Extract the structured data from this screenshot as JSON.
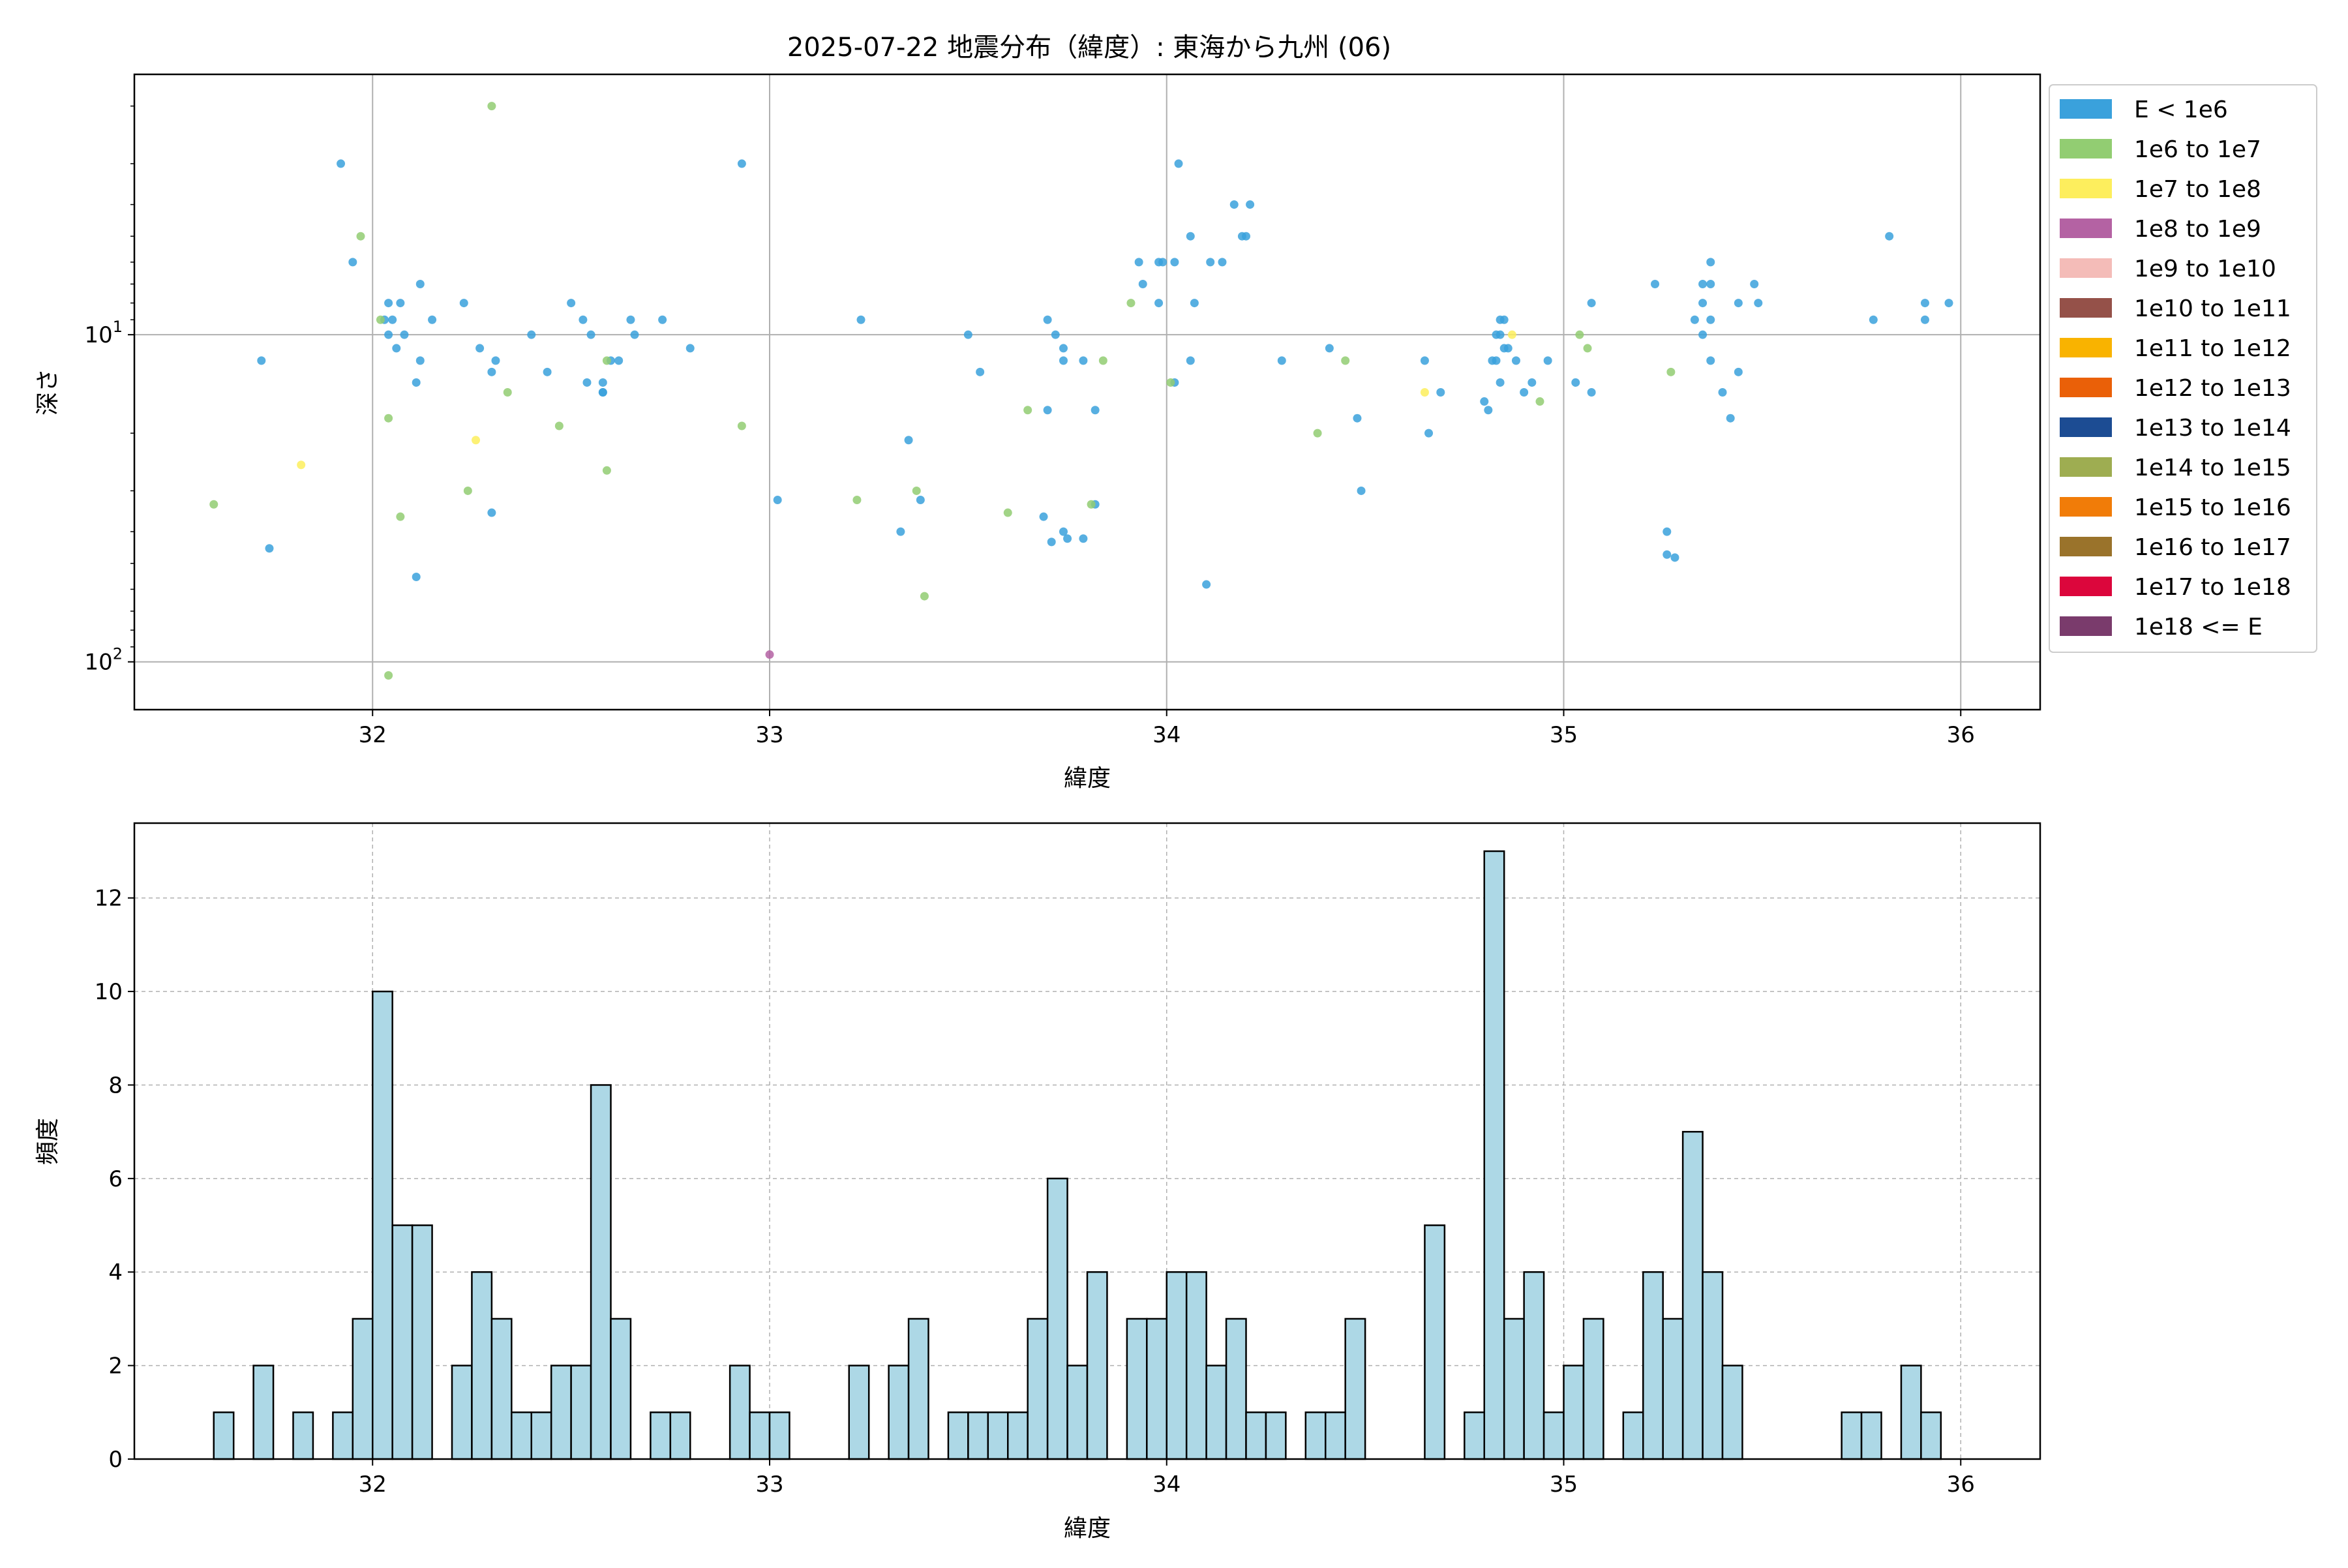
{
  "chart_data": [
    {
      "type": "scatter",
      "title": "2025-07-22 地震分布（緯度）: 東海から九州 (06)",
      "xlabel": "緯度",
      "ylabel": "深さ",
      "xlim": [
        31.4,
        36.2
      ],
      "ylim": [
        140,
        1.6
      ],
      "yscale": "log",
      "yaxis_inverted": true,
      "xticks": [
        32,
        33,
        34,
        35,
        36
      ],
      "yticks": [
        {
          "value": 10,
          "base": "10",
          "exp": "1"
        },
        {
          "value": 100,
          "base": "10",
          "exp": "2"
        }
      ],
      "grid": true,
      "legend_position": "outside-right",
      "legend": [
        {
          "label": "E < 1e6",
          "color": "#3aa1dc"
        },
        {
          "label": "1e6 to 1e7",
          "color": "#92cd72"
        },
        {
          "label": "1e7 to 1e8",
          "color": "#fdee5d"
        },
        {
          "label": "1e8 to 1e9",
          "color": "#b462a3"
        },
        {
          "label": "1e9 to 1e10",
          "color": "#f4bcb8"
        },
        {
          "label": "1e10 to 1e11",
          "color": "#955149"
        },
        {
          "label": "1e11 to 1e12",
          "color": "#f9b300"
        },
        {
          "label": "1e12 to 1e13",
          "color": "#ea6008"
        },
        {
          "label": "1e13 to 1e14",
          "color": "#1c4c93"
        },
        {
          "label": "1e14 to 1e15",
          "color": "#9ead51"
        },
        {
          "label": "1e15 to 1e16",
          "color": "#f17c08"
        },
        {
          "label": "1e16 to 1e17",
          "color": "#9a732b"
        },
        {
          "label": "1e17 to 1e18",
          "color": "#dc063c"
        },
        {
          "label": "1e18 <= E",
          "color": "#7a3b6c"
        }
      ],
      "series": [
        {
          "name": "E < 1e6",
          "color": "#3aa1dc",
          "points": [
            [
              31.92,
              3.0
            ],
            [
              31.95,
              6.0
            ],
            [
              31.72,
              12.0
            ],
            [
              31.74,
              45.0
            ],
            [
              32.04,
              8.0
            ],
            [
              32.03,
              9.0
            ],
            [
              32.05,
              9.0
            ],
            [
              32.04,
              10.0
            ],
            [
              32.07,
              8.0
            ],
            [
              32.06,
              11.0
            ],
            [
              32.08,
              10.0
            ],
            [
              32.12,
              7.0
            ],
            [
              32.15,
              9.0
            ],
            [
              32.12,
              12.0
            ],
            [
              32.11,
              14.0
            ],
            [
              32.11,
              55.0
            ],
            [
              32.23,
              8.0
            ],
            [
              32.27,
              11.0
            ],
            [
              32.3,
              13.0
            ],
            [
              32.31,
              12.0
            ],
            [
              32.3,
              35.0
            ],
            [
              32.4,
              10.0
            ],
            [
              32.44,
              13.0
            ],
            [
              32.5,
              8.0
            ],
            [
              32.53,
              9.0
            ],
            [
              32.55,
              10.0
            ],
            [
              32.54,
              14.0
            ],
            [
              32.58,
              14.0
            ],
            [
              32.58,
              15.0
            ],
            [
              32.58,
              15.0
            ],
            [
              32.6,
              12.0
            ],
            [
              32.62,
              12.0
            ],
            [
              32.65,
              9.0
            ],
            [
              32.66,
              10.0
            ],
            [
              32.73,
              9.0
            ],
            [
              32.8,
              11.0
            ],
            [
              32.93,
              3.0
            ],
            [
              33.02,
              32.0
            ],
            [
              33.23,
              9.0
            ],
            [
              33.33,
              40.0
            ],
            [
              33.35,
              21.0
            ],
            [
              33.38,
              32.0
            ],
            [
              33.5,
              10.0
            ],
            [
              33.53,
              13.0
            ],
            [
              33.7,
              9.0
            ],
            [
              33.72,
              10.0
            ],
            [
              33.74,
              11.0
            ],
            [
              33.74,
              12.0
            ],
            [
              33.79,
              12.0
            ],
            [
              33.82,
              17.0
            ],
            [
              33.7,
              17.0
            ],
            [
              33.69,
              36.0
            ],
            [
              33.71,
              43.0
            ],
            [
              33.74,
              40.0
            ],
            [
              33.75,
              42.0
            ],
            [
              33.79,
              42.0
            ],
            [
              33.82,
              33.0
            ],
            [
              33.93,
              6.0
            ],
            [
              33.94,
              7.0
            ],
            [
              33.98,
              6.0
            ],
            [
              33.99,
              6.0
            ],
            [
              33.98,
              8.0
            ],
            [
              34.03,
              3.0
            ],
            [
              34.02,
              6.0
            ],
            [
              34.06,
              5.0
            ],
            [
              34.07,
              8.0
            ],
            [
              34.11,
              6.0
            ],
            [
              34.14,
              6.0
            ],
            [
              34.17,
              4.0
            ],
            [
              34.19,
              5.0
            ],
            [
              34.21,
              4.0
            ],
            [
              34.2,
              5.0
            ],
            [
              34.06,
              12.0
            ],
            [
              34.02,
              14.0
            ],
            [
              34.1,
              58.0
            ],
            [
              34.29,
              12.0
            ],
            [
              34.41,
              11.0
            ],
            [
              34.48,
              18.0
            ],
            [
              34.49,
              30.0
            ],
            [
              34.65,
              12.0
            ],
            [
              34.66,
              20.0
            ],
            [
              34.69,
              15.0
            ],
            [
              34.81,
              17.0
            ],
            [
              34.83,
              10.0
            ],
            [
              34.83,
              12.0
            ],
            [
              34.85,
              11.0
            ],
            [
              34.86,
              11.0
            ],
            [
              34.84,
              9.0
            ],
            [
              34.85,
              9.0
            ],
            [
              34.84,
              10.0
            ],
            [
              34.82,
              12.0
            ],
            [
              34.84,
              14.0
            ],
            [
              34.8,
              16.0
            ],
            [
              34.88,
              12.0
            ],
            [
              34.9,
              15.0
            ],
            [
              34.92,
              14.0
            ],
            [
              34.96,
              12.0
            ],
            [
              35.03,
              14.0
            ],
            [
              35.07,
              15.0
            ],
            [
              35.07,
              8.0
            ],
            [
              35.23,
              7.0
            ],
            [
              35.26,
              40.0
            ],
            [
              35.26,
              47.0
            ],
            [
              35.28,
              48.0
            ],
            [
              35.33,
              9.0
            ],
            [
              35.35,
              8.0
            ],
            [
              35.35,
              7.0
            ],
            [
              35.35,
              10.0
            ],
            [
              35.37,
              6.0
            ],
            [
              35.37,
              7.0
            ],
            [
              35.37,
              9.0
            ],
            [
              35.37,
              12.0
            ],
            [
              35.4,
              15.0
            ],
            [
              35.42,
              18.0
            ],
            [
              35.44,
              8.0
            ],
            [
              35.44,
              13.0
            ],
            [
              35.48,
              7.0
            ],
            [
              35.49,
              8.0
            ],
            [
              35.78,
              9.0
            ],
            [
              35.82,
              5.0
            ],
            [
              35.91,
              9.0
            ],
            [
              35.91,
              8.0
            ],
            [
              35.97,
              8.0
            ]
          ]
        },
        {
          "name": "1e6 to 1e7",
          "color": "#92cd72",
          "points": [
            [
              31.6,
              33.0
            ],
            [
              31.97,
              5.0
            ],
            [
              32.02,
              9.0
            ],
            [
              32.04,
              18.0
            ],
            [
              32.07,
              36.0
            ],
            [
              32.04,
              110.0
            ],
            [
              32.24,
              30.0
            ],
            [
              32.3,
              2.0
            ],
            [
              32.34,
              15.0
            ],
            [
              32.47,
              19.0
            ],
            [
              32.59,
              12.0
            ],
            [
              32.59,
              26.0
            ],
            [
              32.93,
              19.0
            ],
            [
              33.22,
              32.0
            ],
            [
              33.37,
              30.0
            ],
            [
              33.39,
              63.0
            ],
            [
              33.6,
              35.0
            ],
            [
              33.65,
              17.0
            ],
            [
              33.81,
              33.0
            ],
            [
              33.84,
              12.0
            ],
            [
              33.91,
              8.0
            ],
            [
              34.01,
              14.0
            ],
            [
              34.38,
              20.0
            ],
            [
              34.45,
              12.0
            ],
            [
              34.94,
              16.0
            ],
            [
              35.04,
              10.0
            ],
            [
              35.06,
              11.0
            ],
            [
              35.27,
              13.0
            ]
          ]
        },
        {
          "name": "1e7 to 1e8",
          "color": "#fdee5d",
          "points": [
            [
              31.82,
              25.0
            ],
            [
              32.26,
              21.0
            ],
            [
              34.65,
              15.0
            ],
            [
              34.87,
              10.0
            ]
          ]
        },
        {
          "name": "1e8 to 1e9",
          "color": "#b462a3",
          "points": [
            [
              33.0,
              95.0
            ]
          ]
        }
      ]
    },
    {
      "type": "bar",
      "title": "",
      "xlabel": "緯度",
      "ylabel": "頻度",
      "xlim": [
        31.4,
        36.2
      ],
      "ylim": [
        0,
        13.6
      ],
      "xticks": [
        32,
        33,
        34,
        35,
        36
      ],
      "yticks": [
        0,
        2,
        4,
        6,
        8,
        10,
        12
      ],
      "grid": true,
      "bar_color": "#add8e6",
      "bin_edges": [
        31.6,
        36.0
      ],
      "bin_count": 88,
      "values": [
        1,
        0,
        2,
        0,
        1,
        0,
        1,
        3,
        10,
        5,
        5,
        0,
        2,
        4,
        3,
        1,
        1,
        2,
        2,
        8,
        3,
        0,
        1,
        1,
        0,
        0,
        2,
        1,
        1,
        0,
        0,
        0,
        2,
        0,
        2,
        3,
        0,
        1,
        1,
        1,
        1,
        3,
        6,
        2,
        4,
        0,
        3,
        3,
        4,
        4,
        2,
        3,
        1,
        1,
        0,
        1,
        1,
        3,
        0,
        0,
        0,
        5,
        0,
        1,
        13,
        3,
        4,
        1,
        2,
        3,
        0,
        1,
        4,
        3,
        7,
        4,
        2,
        0,
        0,
        0,
        0,
        0,
        1,
        1,
        0,
        2,
        1,
        0
      ]
    }
  ]
}
